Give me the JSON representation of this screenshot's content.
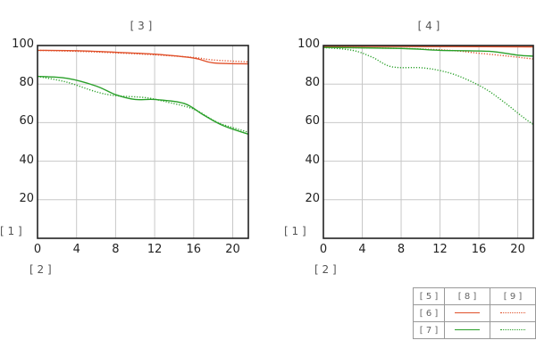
{
  "labels": {
    "y_axis_marker": "[ 1 ]",
    "x_axis_marker": "[ 2 ]"
  },
  "legend": {
    "header": [
      "[ 5 ]",
      "[ 8 ]",
      "[ 9 ]"
    ],
    "rows": [
      {
        "label": "[ 6 ]",
        "color": "#e0502a"
      },
      {
        "label": "[ 7 ]",
        "color": "#2aa02a"
      }
    ]
  },
  "colors": {
    "red": "#e0502a",
    "green": "#2aa02a",
    "grid": "#c8c8c8",
    "axis": "#222222"
  },
  "chart_data": [
    {
      "type": "line",
      "title": "[ 3 ]",
      "xlabel": "[ 2 ]",
      "ylabel": "[ 1 ]",
      "xlim": [
        0,
        21.6
      ],
      "ylim": [
        0,
        100
      ],
      "xticks": [
        "0",
        "4",
        "8",
        "12",
        "16",
        "20"
      ],
      "yticks": [
        "20",
        "40",
        "60",
        "80",
        "100"
      ],
      "grid": true,
      "legend_position": "separate table bottom-right",
      "series": [
        {
          "name": "[ 6 ] [ 8 ]",
          "color": "#e0502a",
          "style": "solid",
          "x": [
            0,
            4,
            8,
            12,
            16,
            18,
            21.6
          ],
          "y": [
            97.5,
            97.3,
            96.5,
            95.5,
            93.5,
            91,
            90.5
          ]
        },
        {
          "name": "[ 6 ] [ 9 ]",
          "color": "#e0502a",
          "style": "dotted",
          "x": [
            0,
            4,
            8,
            12,
            16,
            18,
            21.6
          ],
          "y": [
            97.5,
            97,
            96.2,
            95.2,
            93.8,
            92.5,
            91.5
          ]
        },
        {
          "name": "[ 7 ] [ 8 ]",
          "color": "#2aa02a",
          "style": "solid",
          "x": [
            0,
            3,
            6,
            8,
            10,
            12,
            15,
            17,
            19,
            21.6
          ],
          "y": [
            84,
            83,
            79,
            74.5,
            72,
            72,
            70,
            64,
            58.5,
            54
          ]
        },
        {
          "name": "[ 7 ] [ 9 ]",
          "color": "#2aa02a",
          "style": "dotted",
          "x": [
            0,
            3,
            6,
            8,
            11,
            13,
            16,
            18.5,
            21.6
          ],
          "y": [
            84,
            81,
            76,
            74,
            73,
            71,
            67,
            60,
            55
          ]
        }
      ]
    },
    {
      "type": "line",
      "title": "[ 4 ]",
      "xlabel": "[ 2 ]",
      "ylabel": "[ 1 ]",
      "xlim": [
        0,
        21.6
      ],
      "ylim": [
        0,
        100
      ],
      "xticks": [
        "0",
        "4",
        "8",
        "12",
        "16",
        "20"
      ],
      "yticks": [
        "20",
        "40",
        "60",
        "80",
        "100"
      ],
      "grid": true,
      "legend_position": "separate table bottom-right",
      "series": [
        {
          "name": "[ 6 ] [ 8 ]",
          "color": "#e0502a",
          "style": "solid",
          "x": [
            0,
            8,
            16,
            21.6
          ],
          "y": [
            99.6,
            99.5,
            99.4,
            99.3
          ]
        },
        {
          "name": "[ 6 ] [ 9 ]",
          "color": "#e0502a",
          "style": "dotted",
          "x": [
            0,
            8,
            13,
            16,
            19,
            21.6
          ],
          "y": [
            99,
            98.5,
            97.5,
            96,
            94.5,
            93
          ]
        },
        {
          "name": "[ 7 ] [ 8 ]",
          "color": "#2aa02a",
          "style": "solid",
          "x": [
            0,
            8,
            12,
            17,
            20,
            21.6
          ],
          "y": [
            99,
            98.5,
            97.5,
            97,
            95,
            94.5
          ]
        },
        {
          "name": "[ 7 ] [ 9 ]",
          "color": "#2aa02a",
          "style": "dotted",
          "x": [
            0,
            3,
            5,
            7,
            10,
            12,
            14,
            16.5,
            18.5,
            20.5,
            21.6
          ],
          "y": [
            99,
            97.5,
            94,
            89,
            88.5,
            87,
            84,
            78,
            71,
            63,
            59
          ]
        }
      ]
    }
  ]
}
